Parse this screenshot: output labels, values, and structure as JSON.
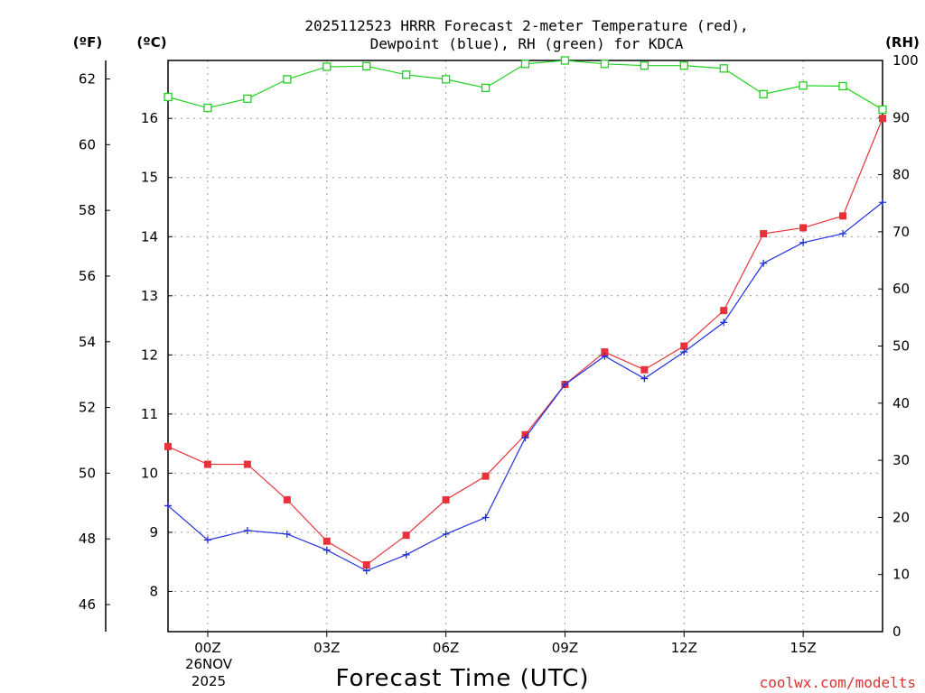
{
  "chart_data": {
    "type": "line",
    "title_line1": "2025112523 HRRR Forecast 2-meter Temperature (red),",
    "title_line2": "Dewpoint (blue), RH (green) for KDCA",
    "xlabel": "Forecast Time (UTC)",
    "credit": "coolwx.com/modelts",
    "date_line1": "26NOV",
    "date_line2": "2025",
    "unit_f": "(ºF)",
    "unit_c": "(ºC)",
    "unit_rh": "(RH)",
    "x": [
      -1,
      0,
      1,
      2,
      3,
      4,
      5,
      6,
      7,
      8,
      9,
      10,
      11,
      12,
      13,
      14,
      15,
      16,
      17
    ],
    "x_ticks": [
      {
        "x": 0,
        "label": "00Z"
      },
      {
        "x": 3,
        "label": "03Z"
      },
      {
        "x": 6,
        "label": "06Z"
      },
      {
        "x": 9,
        "label": "09Z"
      },
      {
        "x": 12,
        "label": "12Z"
      },
      {
        "x": 15,
        "label": "15Z"
      }
    ],
    "xlim": [
      -1,
      17
    ],
    "c_axis": {
      "ylim": [
        7.32,
        16.98
      ],
      "ticks": [
        8,
        9,
        10,
        11,
        12,
        13,
        14,
        15,
        16
      ]
    },
    "f_axis": {
      "ticks": [
        46,
        48,
        50,
        52,
        54,
        56,
        58,
        60,
        62
      ]
    },
    "rh_axis": {
      "ylim": [
        0,
        100
      ],
      "ticks": [
        0,
        10,
        20,
        30,
        40,
        50,
        60,
        70,
        80,
        90,
        100
      ]
    },
    "series": [
      {
        "name": "Temperature",
        "unit": "C",
        "color": "#e8323a",
        "marker": "square-filled",
        "values": [
          10.45,
          10.15,
          10.15,
          9.55,
          8.85,
          8.45,
          8.95,
          9.55,
          9.95,
          10.65,
          11.5,
          12.05,
          11.75,
          12.15,
          12.75,
          14.05,
          14.15,
          14.35,
          16.0
        ]
      },
      {
        "name": "Dewpoint",
        "unit": "C",
        "color": "#2230e0",
        "marker": "plus",
        "values": [
          9.45,
          8.87,
          9.03,
          8.97,
          8.7,
          8.35,
          8.62,
          8.97,
          9.25,
          10.6,
          11.5,
          11.98,
          11.6,
          12.05,
          12.55,
          13.55,
          13.9,
          14.05,
          14.58
        ]
      },
      {
        "name": "RH",
        "unit": "%",
        "color": "#1ed21e",
        "marker": "square-open",
        "values": [
          93.6,
          91.7,
          93.3,
          96.7,
          98.9,
          99.0,
          97.5,
          96.7,
          95.2,
          99.4,
          100.0,
          99.4,
          99.1,
          99.1,
          98.6,
          94.1,
          95.6,
          95.5,
          91.4
        ]
      }
    ]
  }
}
